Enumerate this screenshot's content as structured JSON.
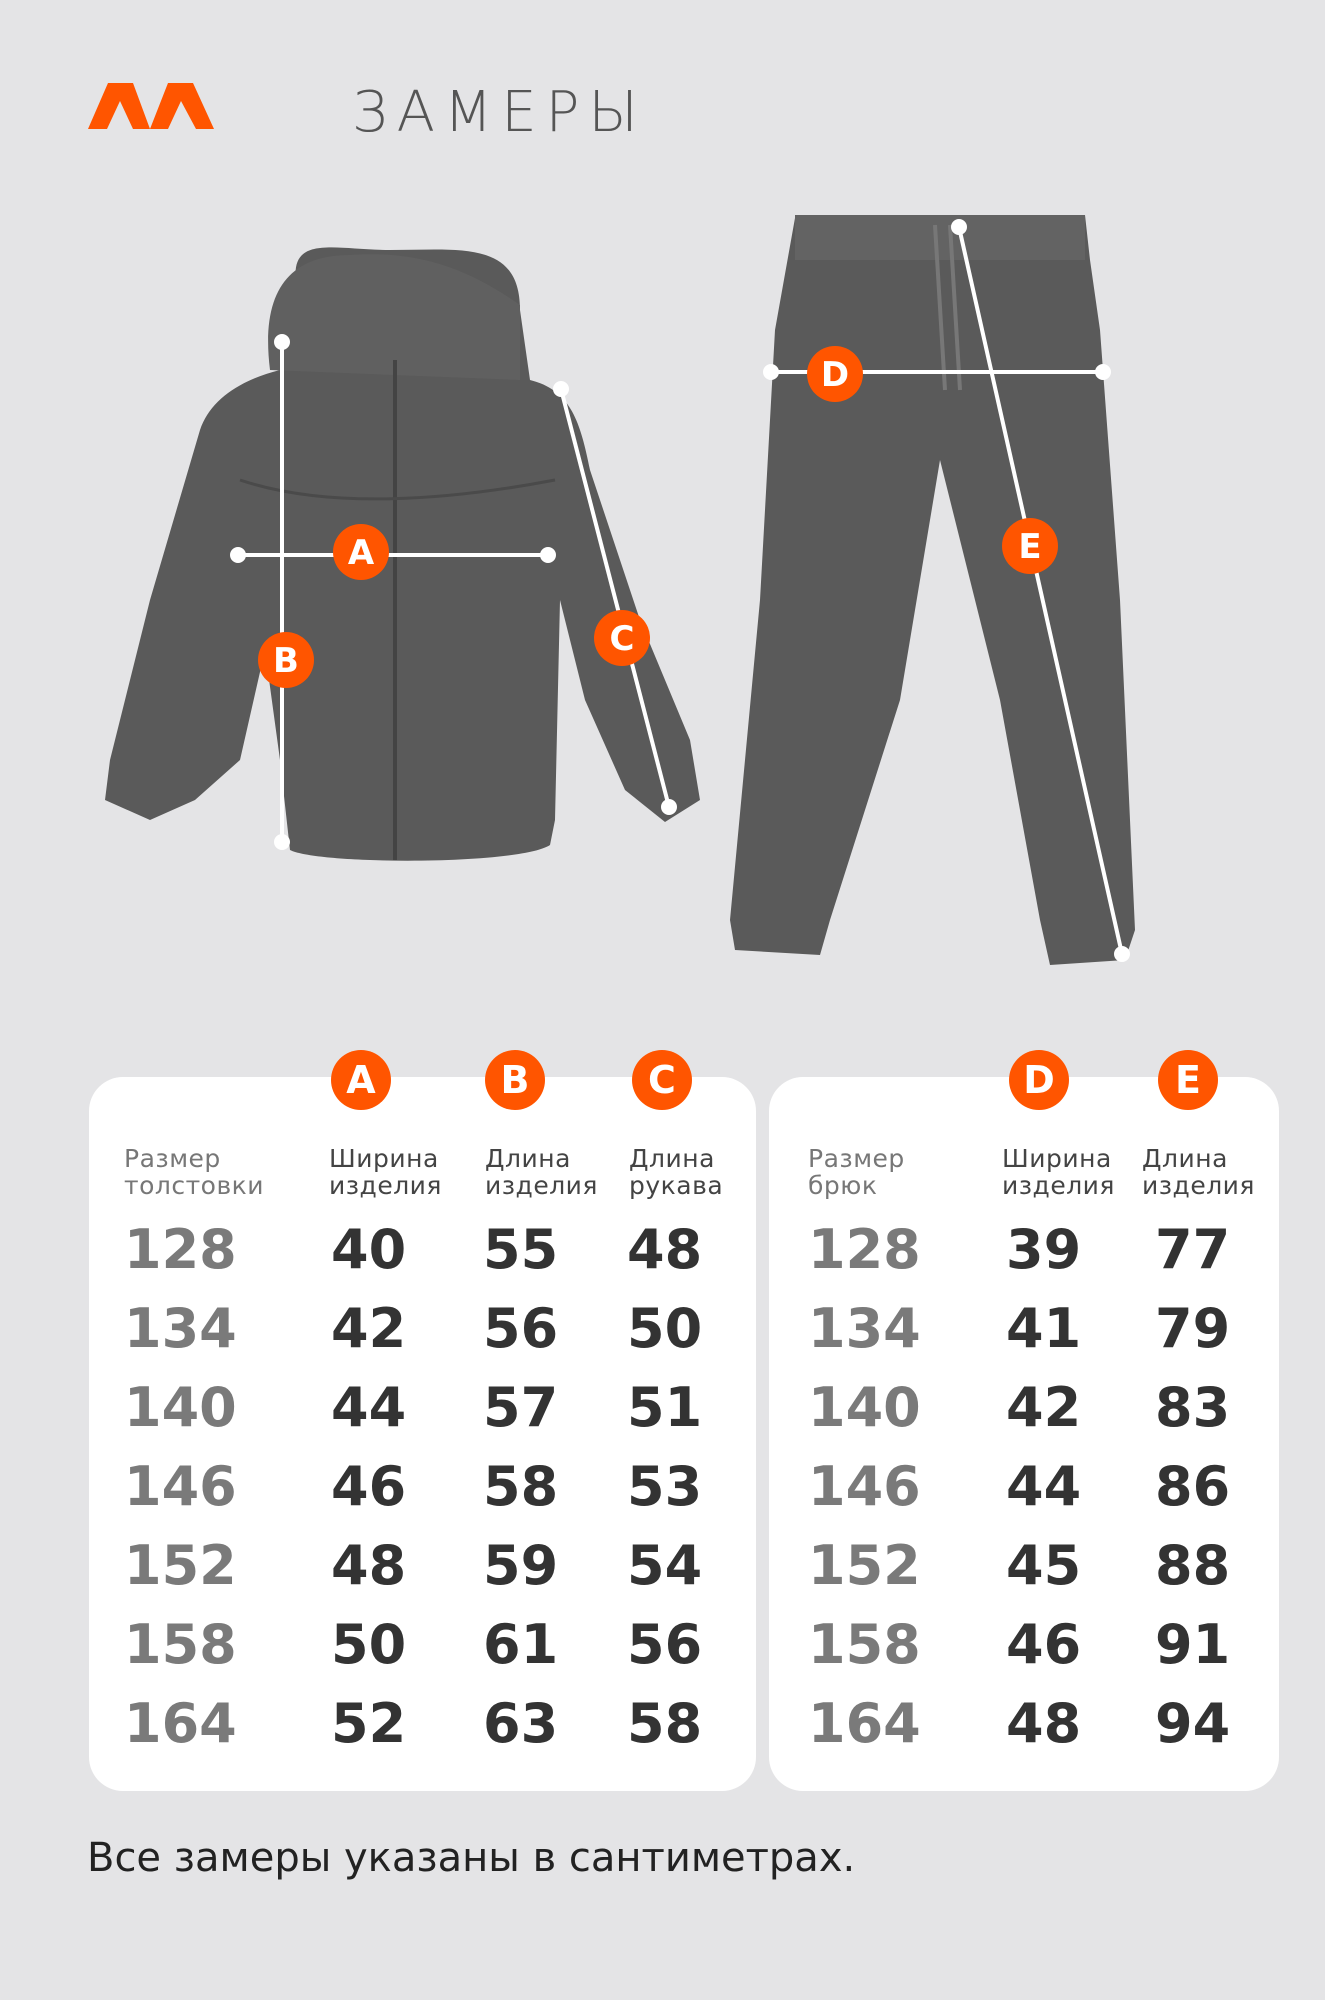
{
  "header": {
    "title": "ЗАМЕРЫ",
    "logo_text": "ΛΛ",
    "brand_color": "#ff5500"
  },
  "diagram": {
    "markers": [
      "A",
      "B",
      "C",
      "D",
      "E"
    ]
  },
  "hoodie_table": {
    "columns": [
      {
        "badge": "",
        "label": "Размер толстовки"
      },
      {
        "badge": "A",
        "label": "Ширина изделия"
      },
      {
        "badge": "B",
        "label": "Длина изделия"
      },
      {
        "badge": "C",
        "label": "Длина рукава"
      }
    ],
    "rows": [
      [
        "128",
        "40",
        "55",
        "48"
      ],
      [
        "134",
        "42",
        "56",
        "50"
      ],
      [
        "140",
        "44",
        "57",
        "51"
      ],
      [
        "146",
        "46",
        "58",
        "53"
      ],
      [
        "152",
        "48",
        "59",
        "54"
      ],
      [
        "158",
        "50",
        "61",
        "56"
      ],
      [
        "164",
        "52",
        "63",
        "58"
      ]
    ]
  },
  "pants_table": {
    "columns": [
      {
        "badge": "",
        "label": "Размер брюк"
      },
      {
        "badge": "D",
        "label": "Ширина изделия"
      },
      {
        "badge": "E",
        "label": "Длина изделия"
      }
    ],
    "rows": [
      [
        "128",
        "39",
        "77"
      ],
      [
        "134",
        "41",
        "79"
      ],
      [
        "140",
        "42",
        "83"
      ],
      [
        "146",
        "44",
        "86"
      ],
      [
        "152",
        "45",
        "88"
      ],
      [
        "158",
        "46",
        "91"
      ],
      [
        "164",
        "48",
        "94"
      ]
    ]
  },
  "footer": {
    "note": "Все замеры указаны в сантиметрах."
  }
}
